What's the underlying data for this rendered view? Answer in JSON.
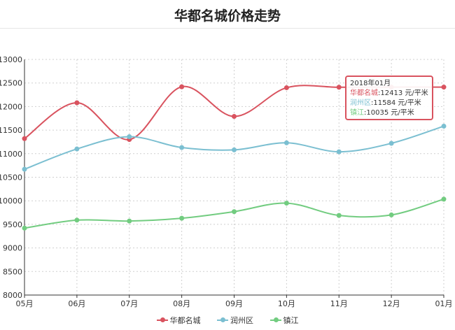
{
  "page": {
    "title": "华都名城价格走势"
  },
  "chart_data": {
    "type": "line",
    "categories": [
      "05月",
      "06月",
      "07月",
      "08月",
      "09月",
      "10月",
      "11月",
      "12月",
      "01月"
    ],
    "ylim": [
      8000,
      13000
    ],
    "yticks": [
      8000,
      8500,
      9000,
      9500,
      10000,
      10500,
      11000,
      11500,
      12000,
      12500,
      13000
    ],
    "grid": true,
    "legend_position": "bottom",
    "series": [
      {
        "name": "华都名城",
        "color": "#d9535f",
        "values": [
          11320,
          12080,
          11300,
          12420,
          11790,
          12400,
          12410,
          12413,
          12413
        ]
      },
      {
        "name": "润州区",
        "color": "#7bbfd1",
        "values": [
          10670,
          11100,
          11360,
          11130,
          11080,
          11230,
          11040,
          11220,
          11584
        ]
      },
      {
        "name": "镇江",
        "color": "#72cc80",
        "values": [
          9420,
          9590,
          9570,
          9630,
          9770,
          9950,
          9690,
          9700,
          10035
        ]
      }
    ]
  },
  "tooltip": {
    "title": "2018年01月",
    "rows": [
      {
        "name": "华都名城",
        "value": ":12413 元/平米",
        "color": "#d9535f"
      },
      {
        "name": "润州区",
        "value": ":11584 元/平米",
        "color": "#7bbfd1"
      },
      {
        "name": "镇江",
        "value": ":10035 元/平米",
        "color": "#72cc80"
      }
    ]
  }
}
